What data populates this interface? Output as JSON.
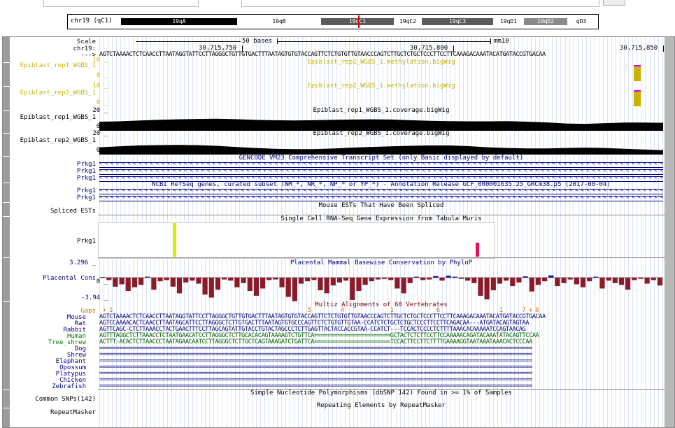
{
  "ideogram": {
    "chrom": "chr19 (qC1)",
    "bands": [
      {
        "name": "19qA",
        "color": "#000000",
        "text": "#ffffff"
      },
      {
        "name": "19qB",
        "color": "#ffffff",
        "text": "#000000"
      },
      {
        "name": "19qC1",
        "color": "#5a5a5a",
        "text": "#ffffff"
      },
      {
        "name": "19qC2",
        "color": "#ffffff",
        "text": "#000000"
      },
      {
        "name": "19qC3",
        "color": "#5a5a5a",
        "text": "#ffffff"
      },
      {
        "name": "19qD1",
        "color": "#ffffff",
        "text": "#000000"
      },
      {
        "name": "19qD2",
        "color": "#8a8a8a",
        "text": "#ffffff"
      },
      {
        "name": "qD3",
        "color": "#ffffff",
        "text": "#000000"
      }
    ]
  },
  "ruler": {
    "scale_label": "Scale",
    "chrom_label": "chr19:",
    "arrow_label": "--->",
    "scale_bar": "50 bases",
    "assembly": "mm10",
    "positions": [
      "30,715,750",
      "30,715,800",
      "30,715,850"
    ]
  },
  "reference_sequence": "AGTCTAAAACTCTCAACCTTAATAGGTATTCCTTAGGGCTGTTGTGACTTTAATAGTGTGTACCAGTTCTCTGTGTTGTAACCCAGTCTTGCTCTGCTCCCTTCCTTCAAAGACAAATACATGATACCGTGACAA",
  "tracks": {
    "meth1": {
      "label": "Epiblast_rep1_WGBS_1",
      "title": "Epiblast_rep1_WGBS_1.methylation.bigWig",
      "max": "10 _",
      "min": "0 _"
    },
    "meth2": {
      "label": "Epiblast_rep2_WGBS_1",
      "title": "Epiblast_rep2_WGBS_1.methylation.bigWig",
      "max": "10 _",
      "min": "0 _"
    },
    "cov1": {
      "label": "Epiblast_rep1_WGBS_1",
      "title": "Epiblast_rep1_WGBS_1.coverage.bigWig",
      "max": "20 _",
      "min": "0 _"
    },
    "cov2": {
      "label": "Epiblast_rep2_WGBS_1",
      "title": "Epiblast_rep2_WGBS_1.coverage.bigWig",
      "max": "20 _",
      "min": "0 _"
    },
    "gencode": {
      "title": "GENCODE VM23 Comprehensive Transcript Set (only Basic displayed by default)",
      "genes": [
        "Prkg1",
        "Prkg1",
        "Prkg1"
      ]
    },
    "refseq": {
      "title": "NCBI RefSeq genes, curated subset (NM_*, NR_*, NP_* or YP_*) - Annotation Release GCF_000001635.25_GRCm38.p5 (2017-08-04)",
      "genes": [
        "Prkg1",
        "Prkg1"
      ]
    },
    "ests": {
      "title": "Mouse ESTs That Have Been Spliced",
      "label": "Spliced ESTs"
    },
    "tabula": {
      "title": "Single Cell RNA-Seq Gene Expression from Tabula Muris",
      "label": "Prkg1"
    },
    "phylop": {
      "title": "Placental Mammal Basewise Conservation by PhyloP",
      "label": "Placental Cons",
      "max": "3.296 _",
      "zero": "0 _",
      "min": "-3.94 _"
    },
    "multiz": {
      "title": "Multiz Alignments of 60 Vertebrates",
      "gaps_label": "Gaps",
      "gaps_row": " + 1                                                           5         4              1             6                  1      7 + 6",
      "species": [
        {
          "name": "Mouse",
          "seq": "AGTCTAAAACTCTCAACCTTAATAGGTATTCCTTAGGGCTGTTGTGACTTTAATAGTGTGTACCAGTTCTCTGTGTTGTAACCCAGTCTTGCTCTGCTCCCTTCCTTCAAAGACAAATACATGATACCGTGACAA"
        },
        {
          "name": "Rat",
          "seq": "AGTCCAAAACACTCAACCTTAATAGCATTCCTTAGGGCTCTTGTGACTTTAATAGTGTGCCCAGTTCTCTGTGTTGTAA-CCATCTCTGCTCTGCTCCCTTCCTTCAGACAA---ATGATACAGTAGTAA"
        },
        {
          "name": "Rabbit",
          "seq": "AGTTCAGC-CTCTTAAACCTACTGAACTTTCCTTAGCAGTATTGTACCTGTACTAGCCCTCTTGAGTTACTACCACCGTAA-CCATCT---TCCACTCCCCTCTTTTAAACACAAAAATCCAGTAACAG"
        },
        {
          "name": "Human",
          "seq": "AGTTTAGGCTCTTAAACCTCTAATGAACATCCTTAGGGCTCTTGCACACAGTAAAAGTCTGTTCA=======================GCTACTCTCTTCCTTCCAAAAACAGATACAAATATACAGTTCCAA"
        },
        {
          "name": "Tree_shrew",
          "seq": "ACTTT-ACACTCTTAACCCTAATAGAACAATCCTTAGGGCTCTTGCTCAGTAAAGATCTGATTCA=======================TCCACTTCCTTCTTTTGAAAAGGTAATAAATAAACACTCCCAA"
        },
        {
          "name": "Dog",
          "seq": "==================================================================================================================================="
        },
        {
          "name": "Shrew",
          "seq": "==================================================================================================================================="
        },
        {
          "name": "Elephant",
          "seq": "==================================================================================================================================="
        },
        {
          "name": "Opossum",
          "seq": "==================================================================================================================================="
        },
        {
          "name": "Platypus",
          "seq": "==================================================================================================================================="
        },
        {
          "name": "Chicken",
          "seq": "==================================================================================================================================="
        },
        {
          "name": "Zebrafish",
          "seq": "==================================================================================================================================="
        }
      ]
    },
    "snps": {
      "title": "Simple Nucleotide Polymorphisms (dbSNP 142) Found in >= 1% of Samples",
      "label": "Common SNPs(142)"
    },
    "rmsk": {
      "title": "Repeating Elements by RepeatMasker",
      "label": "RepeatMasker"
    }
  },
  "colors": {
    "olive": "#c8b400",
    "magenta": "#e000e0",
    "cov": "#000000",
    "phylop_neg": "#8b1a2a",
    "phylop_pos": "#1a1a8b",
    "gene": "#000080",
    "tabula_green": "#d4f000",
    "tabula_red": "#e8105a"
  },
  "coverage": {
    "rep1": [
      0.5,
      0.52,
      0.56,
      0.6,
      0.63,
      0.65,
      0.66,
      0.64,
      0.6,
      0.58,
      0.57,
      0.58,
      0.6,
      0.62,
      0.63,
      0.62,
      0.58,
      0.55,
      0.53,
      0.52,
      0.52,
      0.53,
      0.5,
      0.46,
      0.4,
      0.38,
      0.42,
      0.45,
      0.45,
      0.44
    ],
    "rep2": [
      0.4,
      0.45,
      0.5,
      0.52,
      0.53,
      0.52,
      0.48,
      0.42,
      0.36,
      0.32,
      0.3,
      0.3,
      0.33,
      0.38,
      0.42,
      0.45,
      0.48,
      0.5,
      0.5,
      0.46,
      0.4,
      0.36,
      0.34,
      0.34,
      0.36,
      0.38,
      0.36,
      0.32,
      0.28,
      0.24
    ]
  },
  "phylop_values": [
    0.2,
    -0.4,
    -1.5,
    -1.1,
    -2.2,
    -1.6,
    -1.2,
    0.3,
    -2.0,
    -0.6,
    -0.4,
    -1.5,
    -2.6,
    -0.8,
    -0.5,
    -1.0,
    -2.8,
    -3.3,
    -2.0,
    -0.3,
    -0.5,
    -1.6,
    -0.9,
    -2.2,
    -3.0,
    -1.8,
    -0.4,
    -0.3,
    -1.6,
    -3.2,
    -3.9,
    -1.0,
    -0.6,
    -0.4,
    -2.1,
    -2.6,
    -1.3,
    -0.8,
    -0.5,
    -3.7,
    -2.2,
    -1.2,
    -0.6,
    -0.3,
    -0.2,
    -0.4,
    -1.8,
    -2.6,
    -0.9,
    0.3,
    -0.4,
    -0.3,
    0.5,
    -0.5,
    0.6,
    0.3,
    -0.2,
    -0.5,
    -0.9,
    -3.0,
    -3.6,
    -2.1,
    -1.0,
    -0.5,
    -1.4,
    -0.8,
    0.4,
    -2.3,
    -1.2,
    -0.6,
    0.7,
    -1.4,
    -0.9,
    -0.3,
    -1.1,
    -1.6,
    -0.6,
    0.3,
    -1.8,
    -0.5,
    -0.9,
    -1.2,
    -2.0,
    -0.4,
    -0.2,
    -1.0,
    -0.4,
    -1.3
  ]
}
